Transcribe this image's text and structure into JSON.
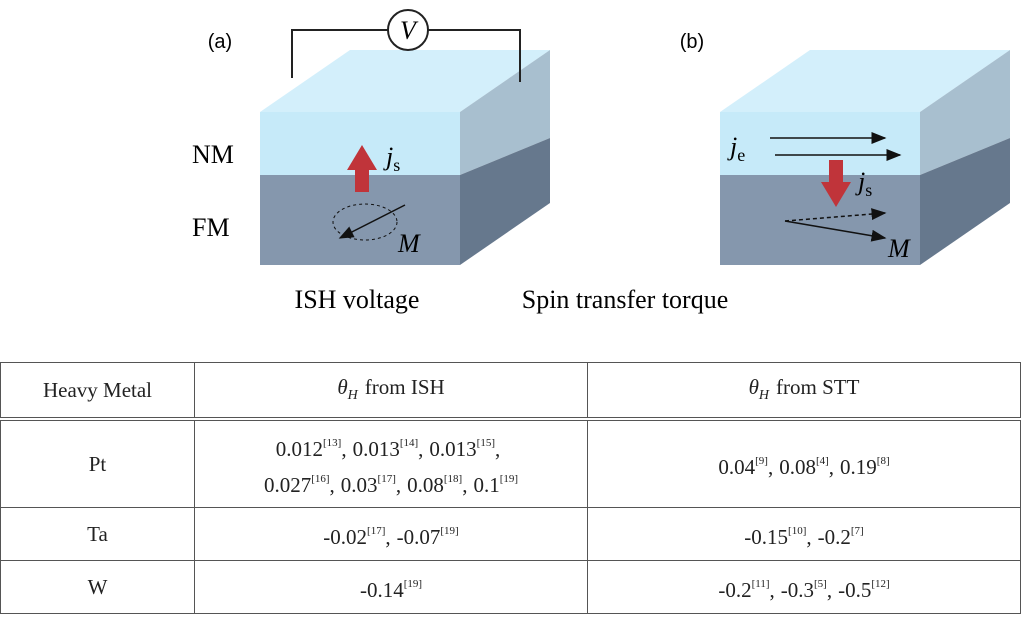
{
  "panel_a": {
    "label": "(a)",
    "voltmeter": "V",
    "layers": [
      "NM",
      "FM"
    ],
    "spin_current": {
      "symbol": "j",
      "sub": "s"
    },
    "magnetization": "M",
    "caption": "ISH voltage"
  },
  "panel_b": {
    "label": "(b)",
    "charge_current": {
      "symbol": "j",
      "sub": "e"
    },
    "spin_current": {
      "symbol": "j",
      "sub": "s"
    },
    "magnetization": "M",
    "caption": "Spin transfer torque"
  },
  "table": {
    "header": [
      "Heavy Metal",
      {
        "symbol": "θ",
        "sub": "H",
        "text": "from ISH"
      },
      {
        "symbol": "θ",
        "sub": "H",
        "text": "from STT"
      }
    ],
    "rows": [
      [
        "Pt",
        [
          [
            {
              "v": "0.012",
              "ref": "[13]",
              "after": ","
            },
            {
              "v": "0.013",
              "ref": "[14]",
              "after": ","
            },
            {
              "v": "0.013",
              "ref": "[15]",
              "after": ","
            }
          ],
          [
            {
              "v": "0.027",
              "ref": "[16]",
              "after": ","
            },
            {
              "v": "0.03",
              "ref": "[17]",
              "after": ","
            },
            {
              "v": "0.08",
              "ref": "[18]",
              "after": ","
            },
            {
              "v": "0.1",
              "ref": "[19]"
            }
          ]
        ],
        [
          [
            {
              "v": "0.04",
              "ref": "[9]",
              "after": ","
            },
            {
              "v": "0.08",
              "ref": "[4]",
              "after": ","
            },
            {
              "v": "0.19",
              "ref": "[8]"
            }
          ]
        ]
      ],
      [
        "Ta",
        [
          [
            {
              "v": "-0.02",
              "ref": "[17]",
              "after": ","
            },
            {
              "v": "-0.07",
              "ref": "[19]"
            }
          ]
        ],
        [
          [
            {
              "v": "-0.15",
              "ref": "[10]",
              "after": ","
            },
            {
              "v": "-0.2",
              "ref": "[7]"
            }
          ]
        ]
      ],
      [
        "W",
        [
          [
            {
              "v": "-0.14",
              "ref": "[19]"
            }
          ]
        ],
        [
          [
            {
              "v": "-0.2",
              "ref": "[11]",
              "after": ","
            },
            {
              "v": "-0.3",
              "ref": "[5]",
              "after": ","
            },
            {
              "v": "-0.5",
              "ref": "[12]"
            }
          ]
        ]
      ]
    ]
  }
}
